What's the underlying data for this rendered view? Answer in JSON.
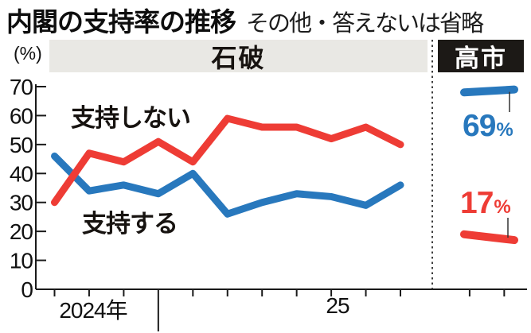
{
  "header": {
    "title": "内閣の支持率の推移",
    "subtitle": "その他・答えないは省略"
  },
  "period_band": {
    "ishiba_label": "石破",
    "takaichi_label": "高市"
  },
  "series_labels": {
    "approve": "支持する",
    "disapprove": "支持しない"
  },
  "callouts": {
    "approve": {
      "value": "69",
      "unit": "%"
    },
    "disapprove": {
      "value": "17",
      "unit": "%"
    }
  },
  "axis": {
    "unit_label": "(%)",
    "x_labels": [
      "2024年",
      "25"
    ],
    "y_ticks": [
      70,
      60,
      50,
      40,
      30,
      20,
      10,
      0
    ]
  },
  "colors": {
    "approve": "#2878bd",
    "disapprove": "#ee3c35",
    "band_bg": "#e9e8e4",
    "box_bg": "#1c1916",
    "axis": "#1a1a1a",
    "separator": "#3c3c3c",
    "connector": "#333333"
  },
  "chart_data": {
    "type": "line",
    "title": "内閣の支持率の推移",
    "note": "その他・答えないは省略",
    "ylabel": "(%)",
    "ylim": [
      0,
      70
    ],
    "grid": false,
    "x_months": [
      "2024-10",
      "2024-11",
      "2024-12",
      "2025-01",
      "2025-02",
      "2025-03",
      "2025-04",
      "2025-05",
      "2025-06",
      "2025-07",
      "2025-08"
    ],
    "series": [
      {
        "name": "支持する",
        "key": "approve",
        "values": [
          46,
          34,
          36,
          33,
          40,
          26,
          30,
          33,
          32,
          29,
          36
        ]
      },
      {
        "name": "支持しない",
        "key": "disapprove",
        "values": [
          30,
          47,
          44,
          51,
          44,
          59,
          56,
          56,
          52,
          56,
          50
        ]
      }
    ],
    "takaichi_x_months": [
      "2025-10",
      "2025-11"
    ],
    "takaichi_series": [
      {
        "name": "支持する",
        "key": "approve",
        "values": [
          68,
          69
        ],
        "latest_label": "69%"
      },
      {
        "name": "支持しない",
        "key": "disapprove",
        "values": [
          19,
          17
        ],
        "latest_label": "17%"
      }
    ]
  }
}
